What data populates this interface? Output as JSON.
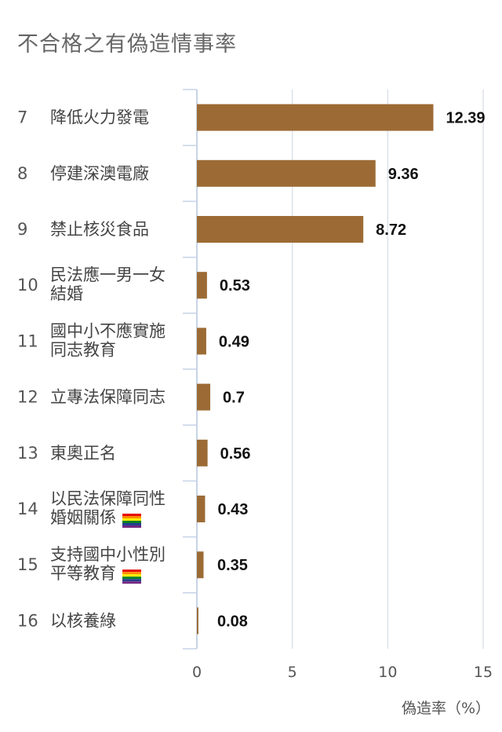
{
  "title": "不合格之有偽造情事率",
  "chart_data": {
    "type": "bar",
    "orientation": "horizontal",
    "categories": [
      {
        "num": "7",
        "lines": [
          "降低火力發電"
        ],
        "flag": false
      },
      {
        "num": "8",
        "lines": [
          "停建深澳電廠"
        ],
        "flag": false
      },
      {
        "num": "9",
        "lines": [
          "禁止核災食品"
        ],
        "flag": false
      },
      {
        "num": "10",
        "lines": [
          "民法應一男一女",
          "結婚"
        ],
        "flag": false
      },
      {
        "num": "11",
        "lines": [
          "國中小不應實施",
          "同志教育"
        ],
        "flag": false
      },
      {
        "num": "12",
        "lines": [
          "立專法保障同志"
        ],
        "flag": false
      },
      {
        "num": "13",
        "lines": [
          "東奧正名"
        ],
        "flag": false
      },
      {
        "num": "14",
        "lines": [
          "以民法保障同性",
          "婚姻關係"
        ],
        "flag": true
      },
      {
        "num": "15",
        "lines": [
          "支持國中小性別",
          "平等教育"
        ],
        "flag": true
      },
      {
        "num": "16",
        "lines": [
          "以核養綠"
        ],
        "flag": false
      }
    ],
    "values": [
      12.39,
      9.36,
      8.72,
      0.53,
      0.49,
      0.7,
      0.56,
      0.43,
      0.35,
      0.08
    ],
    "value_labels": [
      "12.39",
      "9.36",
      "8.72",
      "0.53",
      "0.49",
      "0.7",
      "0.56",
      "0.43",
      "0.35",
      "0.08"
    ],
    "xlim": [
      0,
      15
    ],
    "xticks": [
      "0",
      "5",
      "10",
      "15"
    ],
    "xlabel": "偽造率（%）",
    "grid": true,
    "colors": {
      "bar": "#9c6b35",
      "grid": "#dde2ea",
      "axis": "#c7d3e6"
    }
  }
}
